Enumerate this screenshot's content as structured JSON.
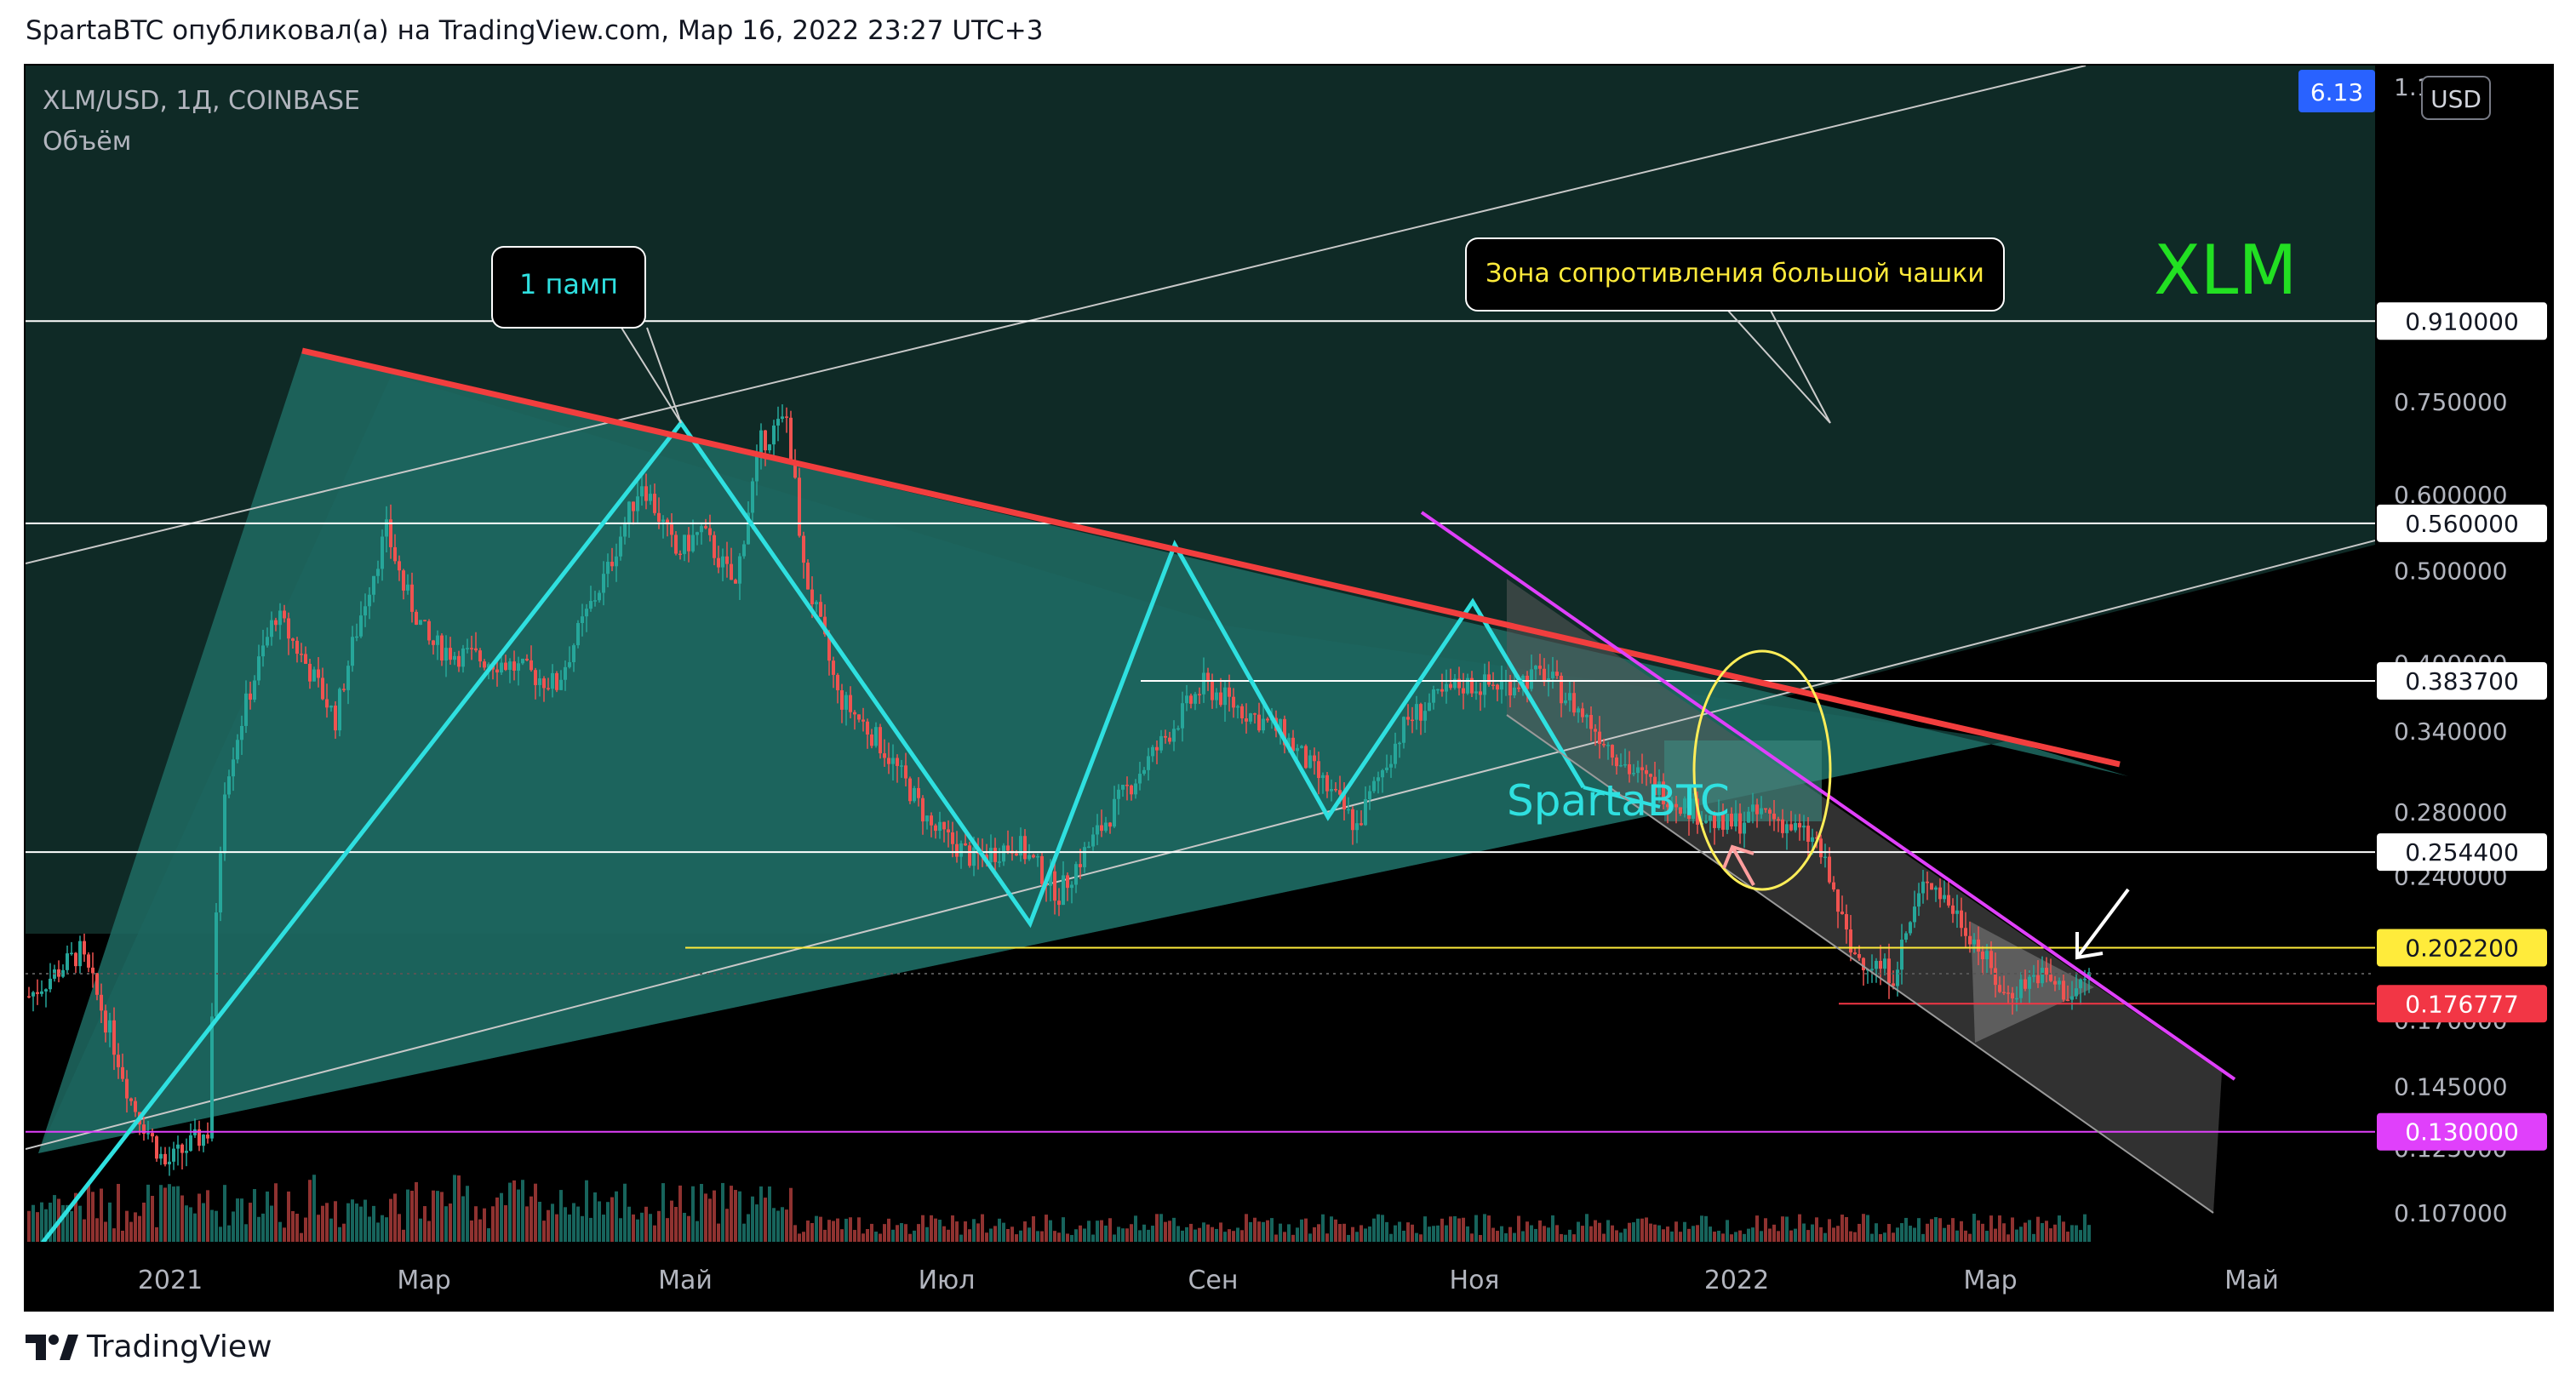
{
  "header": {
    "text": "SpartaBTC опубликовал(а) на TradingView.com, Мар 16, 2022 23:27 UTC+3"
  },
  "footer": {
    "brand": "TradingView"
  },
  "chart_data": {
    "type": "candlestick",
    "symbol": "XLM/USD, 1Д, COINBASE",
    "volume_label": "Объём",
    "currency": "USD",
    "top_badge": "6.13",
    "title_tag": "XLM",
    "watermark": "SpartaBTC",
    "x_ticks": [
      "2021",
      "Мар",
      "Май",
      "Июл",
      "Сен",
      "Ноя",
      "2022",
      "Мар",
      "Май"
    ],
    "y_scale": "log",
    "y_ticks": [
      {
        "label": "1.1",
        "value": 1.1
      },
      {
        "label": "0.750000",
        "value": 0.75
      },
      {
        "label": "0.600000",
        "value": 0.6
      },
      {
        "label": "0.500000",
        "value": 0.5
      },
      {
        "label": "0.400000",
        "value": 0.4
      },
      {
        "label": "0.340000",
        "value": 0.34
      },
      {
        "label": "0.280000",
        "value": 0.28
      },
      {
        "label": "0.240000",
        "value": 0.24
      },
      {
        "label": "0.170000",
        "value": 0.17
      },
      {
        "label": "0.145000",
        "value": 0.145
      },
      {
        "label": "0.125000",
        "value": 0.125
      },
      {
        "label": "0.107000",
        "value": 0.107
      }
    ],
    "levels": [
      {
        "value": 0.91,
        "label": "0.910000",
        "color": "#ffffff",
        "text_color": "#131722"
      },
      {
        "value": 0.56,
        "label": "0.560000",
        "color": "#ffffff",
        "text_color": "#131722"
      },
      {
        "value": 0.3837,
        "label": "0.383700",
        "color": "#ffffff",
        "text_color": "#131722"
      },
      {
        "value": 0.2544,
        "label": "0.254400",
        "color": "#ffffff",
        "text_color": "#131722"
      },
      {
        "value": 0.2022,
        "label": "0.202200",
        "color": "#ffeb3b",
        "text_color": "#131722"
      },
      {
        "value": 0.176777,
        "label": "0.176777",
        "color": "#f23645",
        "text_color": "#ffffff"
      },
      {
        "value": 0.13,
        "label": "0.130000",
        "color": "#e040fb",
        "text_color": "#ffffff"
      }
    ],
    "annotations": {
      "pump": "1 памп",
      "resistance": "Зона сопротивления большой чашки"
    },
    "colors": {
      "background": "#000000",
      "upper_panel": "#0f2a26",
      "triangle_fill": "#1f6b63",
      "trendline": "#f23e3e",
      "zigzag": "#2fe0e0",
      "wedge": "#e040fb",
      "candle_up": "#26a69a",
      "candle_down": "#ef5350",
      "xlm_text": "#22e022",
      "badge": "#2962ff"
    }
  }
}
